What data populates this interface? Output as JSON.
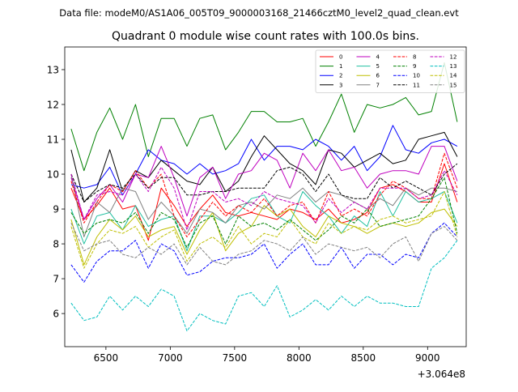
{
  "suptitle": "Data file: modeM0/AS1A06_005T09_9000003168_21466cztM0_level2_quad_clean.evt",
  "chart_data": {
    "type": "line",
    "title": "Quadrant 0 module wise count rates with 100.0s bins.",
    "xlabel": "",
    "ylabel": "",
    "x_offset_label": "+3.064e8",
    "xlim": [
      6180,
      9300
    ],
    "ylim": [
      5.05,
      13.65
    ],
    "xticks": [
      6500,
      7000,
      7500,
      8000,
      8500,
      9000
    ],
    "yticks": [
      6,
      7,
      8,
      9,
      10,
      11,
      12,
      13
    ],
    "grid": false,
    "legend": {
      "position": "top-right",
      "columns": 4
    },
    "x": [
      6230,
      6330,
      6430,
      6530,
      6630,
      6730,
      6830,
      6930,
      7030,
      7130,
      7230,
      7330,
      7430,
      7530,
      7630,
      7730,
      7830,
      7930,
      8030,
      8130,
      8230,
      8330,
      8430,
      8530,
      8630,
      8730,
      8830,
      8930,
      9030,
      9130,
      9230
    ],
    "series": [
      {
        "name": "0",
        "color": "#ff0000",
        "dash": "solid",
        "values": [
          9.6,
          8.7,
          9.1,
          9.6,
          9.0,
          9.1,
          8.1,
          9.6,
          9.1,
          8.5,
          9.0,
          9.4,
          8.9,
          8.8,
          8.9,
          8.8,
          8.7,
          9.0,
          8.9,
          8.7,
          9.0,
          8.6,
          8.7,
          8.9,
          9.6,
          9.7,
          9.5,
          9.2,
          9.2,
          10.3,
          9.2
        ]
      },
      {
        "name": "1",
        "color": "#008000",
        "dash": "solid",
        "values": [
          11.3,
          10.1,
          11.2,
          11.9,
          11.0,
          12.0,
          10.5,
          11.6,
          11.6,
          10.8,
          11.6,
          11.7,
          10.7,
          11.2,
          11.8,
          11.8,
          11.5,
          11.5,
          11.6,
          10.8,
          11.5,
          12.3,
          11.2,
          12.0,
          11.9,
          12.0,
          12.2,
          11.7,
          11.8,
          13.2,
          11.5
        ]
      },
      {
        "name": "2",
        "color": "#0000ff",
        "dash": "solid",
        "values": [
          9.7,
          9.6,
          9.7,
          10.2,
          9.4,
          10.0,
          10.7,
          10.4,
          10.3,
          10.0,
          10.3,
          10.0,
          10.1,
          10.3,
          11.0,
          10.4,
          10.8,
          10.8,
          10.7,
          11.0,
          10.8,
          10.4,
          10.8,
          10.1,
          10.5,
          11.4,
          10.7,
          10.6,
          10.9,
          11.0,
          10.8
        ]
      },
      {
        "name": "3",
        "color": "#000000",
        "dash": "solid",
        "values": [
          10.7,
          9.2,
          9.6,
          10.7,
          9.5,
          10.1,
          9.9,
          10.4,
          10.1,
          9.8,
          9.7,
          10.2,
          9.5,
          9.8,
          10.5,
          11.1,
          10.7,
          10.3,
          10.1,
          9.7,
          10.7,
          10.6,
          10.2,
          10.4,
          10.6,
          10.3,
          10.4,
          11.0,
          11.1,
          11.2,
          10.5
        ]
      },
      {
        "name": "4",
        "color": "#bf00bf",
        "dash": "solid",
        "values": [
          9.9,
          8.7,
          9.3,
          9.7,
          9.2,
          10.0,
          9.9,
          10.8,
          9.9,
          8.8,
          9.9,
          10.2,
          9.3,
          10.0,
          10.1,
          10.6,
          10.4,
          9.6,
          10.6,
          10.1,
          10.7,
          10.1,
          10.2,
          9.6,
          10.0,
          10.1,
          10.1,
          10.0,
          10.8,
          10.8,
          9.8
        ]
      },
      {
        "name": "5",
        "color": "#20c0a0",
        "dash": "solid",
        "values": [
          9.0,
          8.0,
          8.8,
          8.9,
          8.4,
          9.1,
          8.5,
          8.7,
          8.8,
          7.8,
          8.8,
          8.8,
          8.6,
          8.9,
          9.3,
          9.4,
          8.8,
          8.6,
          9.5,
          9.1,
          8.8,
          8.3,
          8.8,
          8.5,
          9.5,
          8.8,
          9.5,
          9.2,
          9.3,
          9.5,
          8.6
        ]
      },
      {
        "name": "6",
        "color": "#bfbf00",
        "dash": "solid",
        "values": [
          8.7,
          7.4,
          8.2,
          8.7,
          8.4,
          8.8,
          8.2,
          8.4,
          8.5,
          7.7,
          8.4,
          8.9,
          7.8,
          8.3,
          8.5,
          9.1,
          8.8,
          9.0,
          8.5,
          8.2,
          8.8,
          8.6,
          8.5,
          8.3,
          8.5,
          8.6,
          8.5,
          8.6,
          8.9,
          9.0,
          8.5
        ]
      },
      {
        "name": "7",
        "color": "#808080",
        "dash": "solid",
        "values": [
          10.0,
          8.2,
          9.2,
          8.9,
          9.6,
          9.5,
          8.7,
          9.2,
          8.8,
          8.3,
          9.0,
          8.9,
          8.6,
          9.1,
          9.2,
          9.0,
          9.4,
          9.3,
          9.6,
          9.2,
          9.5,
          9.4,
          9.2,
          9.0,
          9.3,
          9.1,
          9.6,
          9.4,
          9.6,
          9.6,
          9.5
        ]
      },
      {
        "name": "8",
        "color": "#ff0000",
        "dash": "dashed",
        "values": [
          9.8,
          8.6,
          9.2,
          9.7,
          9.5,
          10.1,
          9.6,
          10.0,
          8.8,
          8.2,
          8.7,
          9.2,
          8.8,
          9.1,
          8.9,
          9.3,
          8.8,
          9.1,
          9.2,
          8.6,
          9.5,
          8.8,
          9.0,
          8.8,
          9.4,
          9.8,
          9.6,
          9.3,
          9.3,
          10.6,
          9.6
        ]
      },
      {
        "name": "9",
        "color": "#008000",
        "dash": "dashed",
        "values": [
          8.9,
          8.3,
          8.6,
          8.7,
          8.6,
          8.9,
          8.3,
          8.9,
          8.7,
          7.9,
          8.6,
          8.8,
          8.0,
          8.8,
          8.5,
          8.6,
          8.4,
          8.7,
          8.4,
          8.1,
          8.4,
          8.8,
          8.6,
          9.0,
          8.5,
          8.6,
          8.7,
          8.8,
          9.3,
          9.9,
          8.3
        ]
      },
      {
        "name": "10",
        "color": "#0000ff",
        "dash": "dashed",
        "values": [
          7.4,
          6.9,
          7.5,
          7.8,
          7.8,
          8.1,
          7.3,
          8.0,
          7.8,
          7.1,
          7.2,
          7.5,
          7.6,
          7.6,
          7.7,
          8.0,
          7.3,
          7.7,
          8.0,
          7.4,
          7.4,
          7.9,
          7.3,
          7.7,
          7.7,
          7.4,
          7.7,
          7.6,
          8.3,
          8.6,
          8.2
        ]
      },
      {
        "name": "11",
        "color": "#000000",
        "dash": "dashed",
        "values": [
          10.0,
          9.2,
          9.5,
          9.7,
          9.6,
          10.0,
          9.6,
          9.9,
          9.9,
          9.4,
          9.4,
          9.5,
          9.5,
          9.6,
          9.6,
          9.6,
          10.1,
          10.2,
          10.0,
          9.5,
          10.0,
          9.4,
          9.3,
          9.3,
          9.9,
          9.6,
          9.8,
          9.6,
          9.4,
          10.0,
          10.3
        ]
      },
      {
        "name": "12",
        "color": "#bf00bf",
        "dash": "dashed",
        "values": [
          10.0,
          8.7,
          9.4,
          9.5,
          9.4,
          10.0,
          9.5,
          10.2,
          9.6,
          8.4,
          9.5,
          9.5,
          9.2,
          9.3,
          9.1,
          9.5,
          9.3,
          9.2,
          9.1,
          8.6,
          9.3,
          8.9,
          9.2,
          9.0,
          9.6,
          9.6,
          9.6,
          9.3,
          9.4,
          10.1,
          9.4
        ]
      },
      {
        "name": "13",
        "color": "#00bfbf",
        "dash": "dashed",
        "values": [
          6.3,
          5.8,
          5.9,
          6.5,
          6.1,
          6.5,
          6.2,
          6.7,
          6.5,
          5.5,
          6.0,
          5.8,
          5.7,
          6.5,
          6.6,
          6.2,
          6.8,
          5.9,
          6.1,
          6.4,
          6.1,
          6.5,
          6.2,
          6.5,
          6.3,
          6.3,
          6.2,
          6.2,
          7.3,
          7.6,
          8.1
        ]
      },
      {
        "name": "14",
        "color": "#bfbf00",
        "dash": "dashed",
        "values": [
          8.5,
          7.3,
          8.0,
          8.4,
          8.3,
          8.5,
          7.9,
          8.2,
          8.4,
          7.5,
          8.0,
          8.2,
          7.9,
          8.5,
          8.0,
          8.3,
          8.2,
          8.7,
          8.2,
          8.0,
          8.6,
          8.3,
          8.5,
          8.4,
          8.7,
          8.8,
          8.6,
          8.7,
          8.8,
          9.5,
          8.2
        ]
      },
      {
        "name": "15",
        "color": "#808080",
        "dash": "dashed",
        "values": [
          8.6,
          7.8,
          8.0,
          8.1,
          7.7,
          7.6,
          7.9,
          7.7,
          8.0,
          7.4,
          7.9,
          7.5,
          7.4,
          7.7,
          7.8,
          8.1,
          8.0,
          7.8,
          8.2,
          7.7,
          8.0,
          7.9,
          7.8,
          7.9,
          7.6,
          8.0,
          8.2,
          7.5,
          8.3,
          8.5,
          8.1
        ]
      }
    ]
  }
}
